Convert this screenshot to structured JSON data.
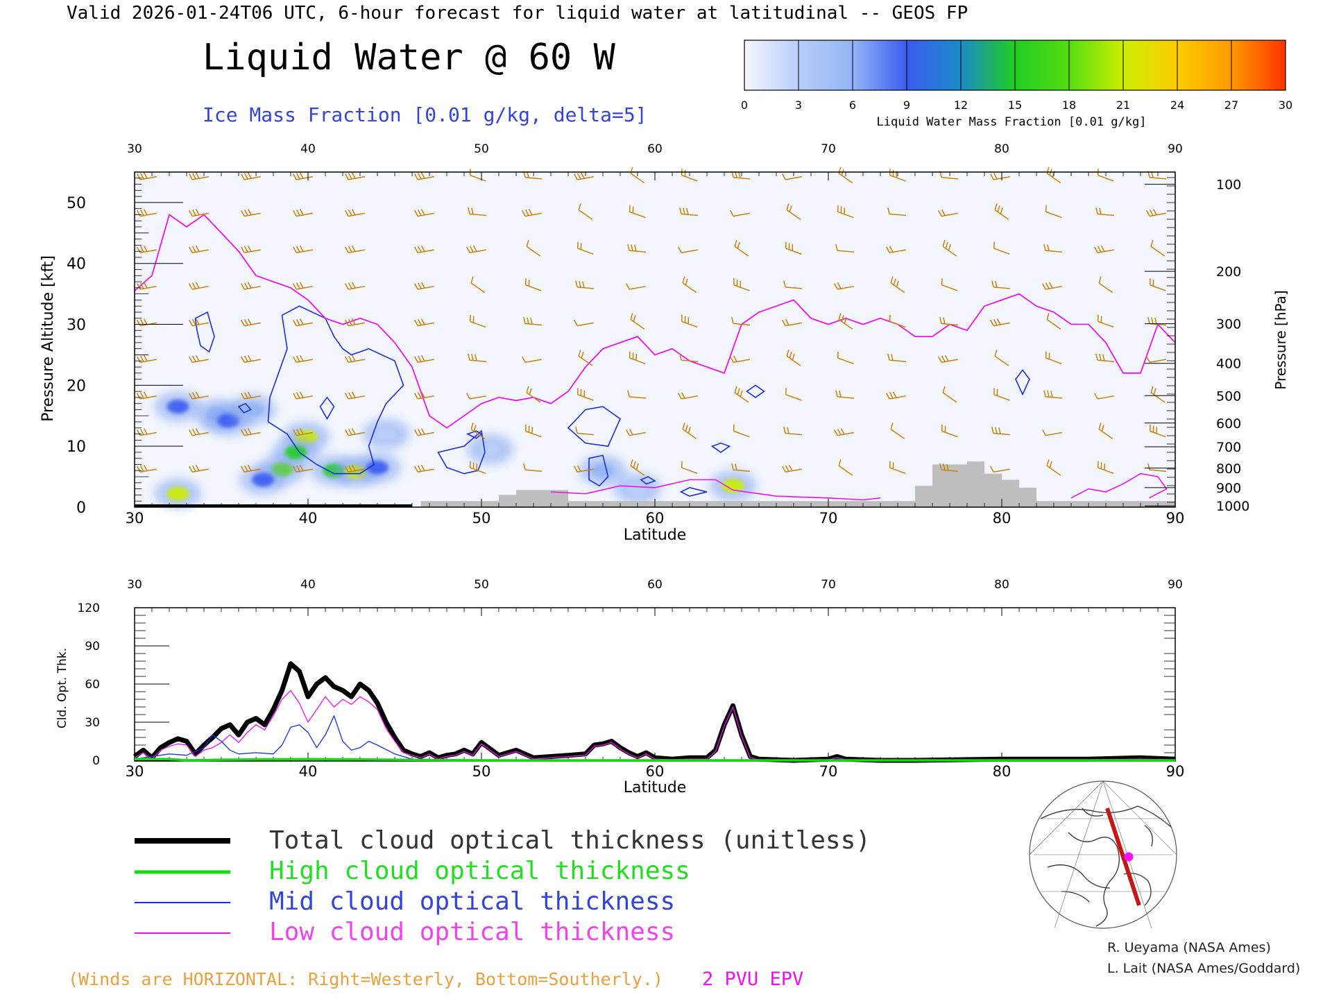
{
  "header": {
    "valid_line": "Valid 2026-01-24T06 UTC, 6-hour forecast for liquid water at latitudinal -- GEOS FP",
    "title": "Liquid Water @ 60 W",
    "ice_label": "Ice Mass Fraction [0.01 g/kg, delta=5]"
  },
  "colorbar": {
    "ticks": [
      "0",
      "3",
      "6",
      "9",
      "12",
      "15",
      "18",
      "21",
      "24",
      "27",
      "30"
    ],
    "label": "Liquid Water Mass Fraction [0.01 g/kg]",
    "colors": [
      "#f4f7ff",
      "#b8cdf8",
      "#93b5f6",
      "#3a5cf0",
      "#1a8cc8",
      "#22cc22",
      "#55dd11",
      "#ccee00",
      "#ffcc00",
      "#ff9900",
      "#ff3300"
    ]
  },
  "colors": {
    "wind": "#c8820a",
    "epv": "#ee11ee",
    "ice": "#1a2ed8",
    "terrain": "#bebebe",
    "total": "#000000",
    "high": "#11dd11",
    "mid": "#1a2ed8",
    "low": "#ee11ee"
  },
  "chart_data": [
    {
      "type": "heatmap",
      "title": "Liquid Water @ 60 W",
      "xlabel": "Latitude",
      "ylabel": "Pressure Altitude [kft]",
      "y2label": "Pressure [hPa]",
      "xlim": [
        30,
        90
      ],
      "ylim": [
        0,
        55
      ],
      "xticks": [
        "30",
        "40",
        "50",
        "60",
        "70",
        "80",
        "90"
      ],
      "yticks": [
        "0",
        "10",
        "20",
        "30",
        "40",
        "50"
      ],
      "pressure_ticks": [
        "100",
        "200",
        "300",
        "400",
        "500",
        "600",
        "700",
        "800",
        "900",
        "1000"
      ],
      "pressure_tick_alt_kft": [
        53,
        38.7,
        30.1,
        23.6,
        18.3,
        13.8,
        9.9,
        6.4,
        3.2,
        0.2
      ],
      "liquid_water_blobs": [
        {
          "lat": 32.5,
          "alt": 16.5,
          "value": 8
        },
        {
          "lat": 34.8,
          "alt": 15.2,
          "value": 7
        },
        {
          "lat": 35.4,
          "alt": 14.2,
          "value": 9
        },
        {
          "lat": 36.8,
          "alt": 16.0,
          "value": 5
        },
        {
          "lat": 38.5,
          "alt": 6.2,
          "value": 18
        },
        {
          "lat": 37.4,
          "alt": 4.5,
          "value": 10
        },
        {
          "lat": 39.9,
          "alt": 11.5,
          "value": 22
        },
        {
          "lat": 39.3,
          "alt": 9.0,
          "value": 14
        },
        {
          "lat": 41.5,
          "alt": 6.0,
          "value": 15
        },
        {
          "lat": 42.8,
          "alt": 5.8,
          "value": 20
        },
        {
          "lat": 44.0,
          "alt": 6.5,
          "value": 10
        },
        {
          "lat": 32.5,
          "alt": 2.2,
          "value": 20
        },
        {
          "lat": 44.5,
          "alt": 12.0,
          "value": 4
        },
        {
          "lat": 50.5,
          "alt": 9.5,
          "value": 4
        },
        {
          "lat": 57.0,
          "alt": 6.0,
          "value": 6
        },
        {
          "lat": 64.5,
          "alt": 3.5,
          "value": 20
        },
        {
          "lat": 59.0,
          "alt": 3.0,
          "value": 3
        }
      ],
      "epv_2pvu_kft": [
        [
          30,
          35.5
        ],
        [
          31,
          38
        ],
        [
          31.5,
          43
        ],
        [
          32,
          48
        ],
        [
          33,
          46
        ],
        [
          34,
          48
        ],
        [
          35,
          45
        ],
        [
          36,
          42
        ],
        [
          37,
          38
        ],
        [
          38,
          37
        ],
        [
          39,
          36
        ],
        [
          40,
          34
        ],
        [
          41,
          31
        ],
        [
          42,
          30
        ],
        [
          43,
          31
        ],
        [
          44,
          30
        ],
        [
          45,
          27
        ],
        [
          46,
          23
        ],
        [
          47,
          15
        ],
        [
          48,
          13
        ],
        [
          49,
          15
        ],
        [
          50,
          17
        ],
        [
          51,
          18
        ],
        [
          52,
          17.5
        ],
        [
          53,
          18
        ],
        [
          54,
          17
        ],
        [
          55,
          19
        ],
        [
          56,
          23
        ],
        [
          57,
          26
        ],
        [
          58,
          27
        ],
        [
          59,
          28
        ],
        [
          60,
          25
        ],
        [
          61,
          26
        ],
        [
          62,
          24
        ],
        [
          63,
          23
        ],
        [
          64,
          22
        ],
        [
          65,
          30
        ],
        [
          66,
          32
        ],
        [
          67,
          33
        ],
        [
          68,
          34
        ],
        [
          69,
          31
        ],
        [
          70,
          30
        ],
        [
          71,
          31
        ],
        [
          72,
          30
        ],
        [
          73,
          31
        ],
        [
          74,
          30
        ],
        [
          75,
          28
        ],
        [
          76,
          28
        ],
        [
          77,
          30
        ],
        [
          78,
          29
        ],
        [
          79,
          33
        ],
        [
          80,
          34
        ],
        [
          81,
          35
        ],
        [
          82,
          33
        ],
        [
          83,
          32
        ],
        [
          84,
          30
        ],
        [
          85,
          30
        ],
        [
          86,
          27
        ],
        [
          87,
          22
        ],
        [
          88,
          22
        ],
        [
          89,
          30
        ],
        [
          90,
          27
        ]
      ],
      "terrain_kft": [
        [
          30,
          0
        ],
        [
          46.5,
          0
        ],
        [
          46.5,
          1
        ],
        [
          51,
          1
        ],
        [
          51,
          2
        ],
        [
          52,
          2
        ],
        [
          52,
          2.8
        ],
        [
          55,
          2.8
        ],
        [
          55,
          1
        ],
        [
          75,
          1
        ],
        [
          75,
          3.5
        ],
        [
          76,
          3.5
        ],
        [
          76,
          7
        ],
        [
          78,
          7
        ],
        [
          78,
          7.5
        ],
        [
          79,
          7.5
        ],
        [
          79,
          5.5
        ],
        [
          80,
          5.5
        ],
        [
          80,
          4.5
        ],
        [
          81,
          4.5
        ],
        [
          81,
          3.2
        ],
        [
          82,
          3.2
        ],
        [
          82,
          1
        ],
        [
          90,
          1
        ],
        [
          90,
          0
        ]
      ],
      "wind_barb_lats": [
        30.8,
        33.8,
        36.8,
        39.8,
        42.8,
        46.8,
        49.8,
        53,
        56,
        59,
        62,
        65,
        68,
        71,
        74,
        77,
        80,
        83,
        86,
        89
      ],
      "wind_barb_alts_kft": [
        54,
        48,
        42,
        36,
        30,
        24,
        18,
        12,
        6
      ]
    },
    {
      "type": "line",
      "xlabel": "Latitude",
      "ylabel": "Cld. Opt. Thk.",
      "xlim": [
        30,
        90
      ],
      "ylim": [
        0,
        120
      ],
      "xticks": [
        "30",
        "40",
        "50",
        "60",
        "70",
        "80",
        "90"
      ],
      "yticks": [
        "0",
        "30",
        "60",
        "90",
        "120"
      ],
      "series": [
        {
          "name": "Total cloud optical thickness (unitless)",
          "color": "#000000",
          "x": [
            30,
            30.5,
            31,
            31.5,
            32,
            32.5,
            33,
            33.5,
            34,
            34.5,
            35,
            35.5,
            36,
            36.5,
            37,
            37.5,
            38,
            38.5,
            39,
            39.5,
            40,
            40.5,
            41,
            41.5,
            42,
            42.5,
            43,
            43.5,
            44,
            44.5,
            45,
            45.5,
            46,
            46.5,
            47,
            47.5,
            48,
            48.5,
            49,
            49.5,
            50,
            51,
            52,
            53,
            54,
            55,
            56,
            56.5,
            57,
            57.5,
            58,
            58.5,
            59,
            59.5,
            60,
            61,
            62,
            63,
            63.5,
            64,
            64.5,
            65,
            65.5,
            66,
            68,
            70,
            70.5,
            71,
            73,
            75,
            80,
            85,
            88,
            90
          ],
          "y": [
            3,
            8,
            2,
            10,
            14,
            17,
            15,
            5,
            12,
            18,
            25,
            28,
            20,
            30,
            33,
            28,
            40,
            55,
            76,
            70,
            50,
            60,
            65,
            58,
            55,
            50,
            60,
            55,
            45,
            30,
            18,
            8,
            5,
            3,
            6,
            2,
            4,
            5,
            8,
            5,
            14,
            4,
            8,
            2,
            3,
            4,
            5,
            12,
            13,
            15,
            10,
            6,
            3,
            6,
            2,
            1,
            2,
            2,
            8,
            28,
            43,
            20,
            3,
            1,
            0,
            1,
            3,
            1,
            0,
            0,
            1,
            1,
            2,
            1
          ]
        },
        {
          "name": "High cloud optical thickness",
          "color": "#11dd11",
          "x": [
            30,
            32,
            33,
            35,
            40,
            45,
            50,
            60,
            70,
            80,
            90
          ],
          "y": [
            1,
            1,
            0,
            0.5,
            1,
            0.5,
            0,
            0,
            0,
            0,
            0
          ]
        },
        {
          "name": "Mid cloud optical thickness",
          "color": "#1a2ed8",
          "x": [
            30,
            31,
            32,
            33,
            34,
            34.5,
            35,
            35.5,
            36,
            37,
            38,
            38.5,
            39,
            39.5,
            40,
            40.5,
            41,
            41.5,
            42,
            42.5,
            43,
            43.5,
            44,
            45,
            46,
            50,
            60,
            70,
            80,
            90
          ],
          "y": [
            1,
            3,
            5,
            4,
            10,
            20,
            15,
            8,
            5,
            6,
            5,
            12,
            26,
            28,
            22,
            10,
            20,
            35,
            15,
            8,
            10,
            15,
            12,
            5,
            1,
            0,
            0,
            0,
            0,
            0
          ]
        },
        {
          "name": "Low cloud optical thickness",
          "color": "#ee11ee",
          "x": [
            30,
            30.5,
            31,
            31.5,
            32,
            32.5,
            33,
            33.5,
            34,
            34.5,
            35,
            35.5,
            36,
            36.5,
            37,
            37.5,
            38,
            38.5,
            39,
            39.5,
            40,
            40.5,
            41,
            41.5,
            42,
            42.5,
            43,
            43.5,
            44,
            44.5,
            45,
            45.5,
            46,
            46.5,
            47,
            47.5,
            48,
            48.5,
            49,
            49.5,
            50,
            51,
            52,
            53,
            54,
            55,
            56,
            56.5,
            57,
            57.5,
            58,
            58.5,
            59,
            59.5,
            60,
            61,
            62,
            63,
            63.5,
            64,
            64.5,
            65,
            65.5,
            66,
            68,
            70,
            70.5,
            71,
            73,
            75,
            80,
            85,
            88,
            90
          ],
          "y": [
            2,
            6,
            1,
            8,
            11,
            13,
            12,
            3,
            8,
            10,
            14,
            20,
            14,
            22,
            28,
            24,
            35,
            48,
            55,
            45,
            30,
            40,
            50,
            42,
            48,
            44,
            50,
            46,
            40,
            25,
            15,
            6,
            4,
            2,
            5,
            1,
            3,
            4,
            7,
            4,
            13,
            3,
            7,
            1,
            2,
            3,
            4,
            11,
            12,
            14,
            9,
            5,
            2,
            5,
            1,
            0.5,
            1,
            1,
            7,
            27,
            42,
            19,
            2,
            0.5,
            0,
            0.5,
            2,
            0.5,
            0,
            0,
            0.5,
            0.5,
            1,
            0.5
          ]
        }
      ]
    }
  ],
  "legend": {
    "total": "Total cloud optical thickness (unitless)",
    "high": "High cloud optical thickness",
    "mid": "Mid cloud optical thickness",
    "low": "Low cloud optical thickness"
  },
  "footer": {
    "winds_note": "(Winds are HORIZONTAL: Right=Westerly, Bottom=Southerly.)",
    "epv_label": "2 PVU EPV",
    "credit1": "R. Ueyama (NASA Ames)",
    "credit2": "L. Lait (NASA Ames/Goddard)"
  }
}
